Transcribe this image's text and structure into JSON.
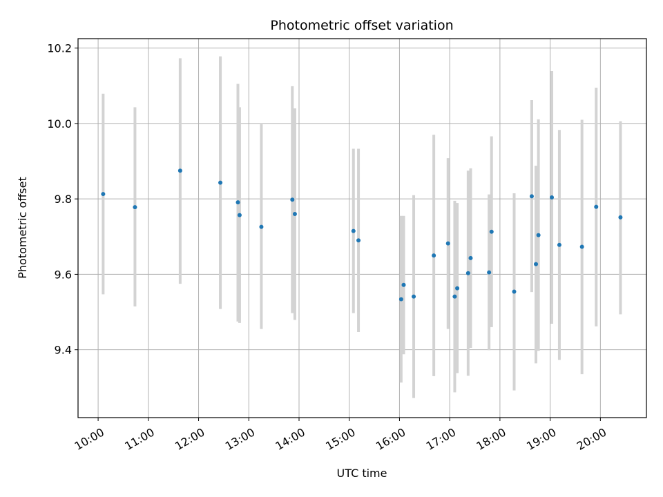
{
  "chart_data": {
    "type": "scatter",
    "title": "Photometric offset variation",
    "xlabel": "UTC time",
    "ylabel": "Photometric offset",
    "x_ticks": [
      "10:00",
      "11:00",
      "12:00",
      "13:00",
      "14:00",
      "15:00",
      "16:00",
      "17:00",
      "18:00",
      "19:00",
      "20:00"
    ],
    "y_ticks": [
      "9.4",
      "9.6",
      "9.8",
      "10.0",
      "10.2"
    ],
    "xlim": [
      "09:36",
      "20:55"
    ],
    "ylim": [
      9.22,
      10.225
    ],
    "grid": true,
    "colors": {
      "point": "#1f77b4",
      "errorbar": "#d3d3d3",
      "grid": "#b0b0b0"
    },
    "points": [
      {
        "x": "10:06",
        "y": 9.813,
        "low": 9.547,
        "high": 10.079
      },
      {
        "x": "10:44",
        "y": 9.778,
        "low": 9.515,
        "high": 10.043
      },
      {
        "x": "11:38",
        "y": 9.875,
        "low": 9.575,
        "high": 10.173
      },
      {
        "x": "12:26",
        "y": 9.843,
        "low": 9.508,
        "high": 10.178
      },
      {
        "x": "12:47",
        "y": 9.791,
        "low": 9.475,
        "high": 10.105
      },
      {
        "x": "12:49",
        "y": 9.757,
        "low": 9.471,
        "high": 10.043
      },
      {
        "x": "13:15",
        "y": 9.726,
        "low": 9.455,
        "high": 9.998
      },
      {
        "x": "13:52",
        "y": 9.798,
        "low": 9.497,
        "high": 10.099
      },
      {
        "x": "13:55",
        "y": 9.76,
        "low": 9.479,
        "high": 10.04
      },
      {
        "x": "15:05",
        "y": 9.715,
        "low": 9.497,
        "high": 9.933
      },
      {
        "x": "15:11",
        "y": 9.69,
        "low": 9.447,
        "high": 9.933
      },
      {
        "x": "16:02",
        "y": 9.534,
        "low": 9.313,
        "high": 9.755
      },
      {
        "x": "16:05",
        "y": 9.572,
        "low": 9.388,
        "high": 9.755
      },
      {
        "x": "16:17",
        "y": 9.541,
        "low": 9.272,
        "high": 9.81
      },
      {
        "x": "16:41",
        "y": 9.65,
        "low": 9.33,
        "high": 9.97
      },
      {
        "x": "16:58",
        "y": 9.682,
        "low": 9.455,
        "high": 9.908
      },
      {
        "x": "17:06",
        "y": 9.541,
        "low": 9.287,
        "high": 9.795
      },
      {
        "x": "17:09",
        "y": 9.563,
        "low": 9.338,
        "high": 9.789
      },
      {
        "x": "17:22",
        "y": 9.603,
        "low": 9.331,
        "high": 9.875
      },
      {
        "x": "17:25",
        "y": 9.643,
        "low": 9.405,
        "high": 9.881
      },
      {
        "x": "17:47",
        "y": 9.605,
        "low": 9.399,
        "high": 9.812
      },
      {
        "x": "17:50",
        "y": 9.713,
        "low": 9.46,
        "high": 9.966
      },
      {
        "x": "18:17",
        "y": 9.554,
        "low": 9.292,
        "high": 9.815
      },
      {
        "x": "18:38",
        "y": 9.807,
        "low": 9.553,
        "high": 10.062
      },
      {
        "x": "18:43",
        "y": 9.627,
        "low": 9.364,
        "high": 9.888
      },
      {
        "x": "18:46",
        "y": 9.704,
        "low": 9.397,
        "high": 10.011
      },
      {
        "x": "19:02",
        "y": 9.804,
        "low": 9.469,
        "high": 10.139
      },
      {
        "x": "19:11",
        "y": 9.678,
        "low": 9.373,
        "high": 9.983
      },
      {
        "x": "19:38",
        "y": 9.673,
        "low": 9.335,
        "high": 10.01
      },
      {
        "x": "19:55",
        "y": 9.779,
        "low": 9.462,
        "high": 10.095
      },
      {
        "x": "20:24",
        "y": 9.751,
        "low": 9.494,
        "high": 10.006
      }
    ]
  }
}
